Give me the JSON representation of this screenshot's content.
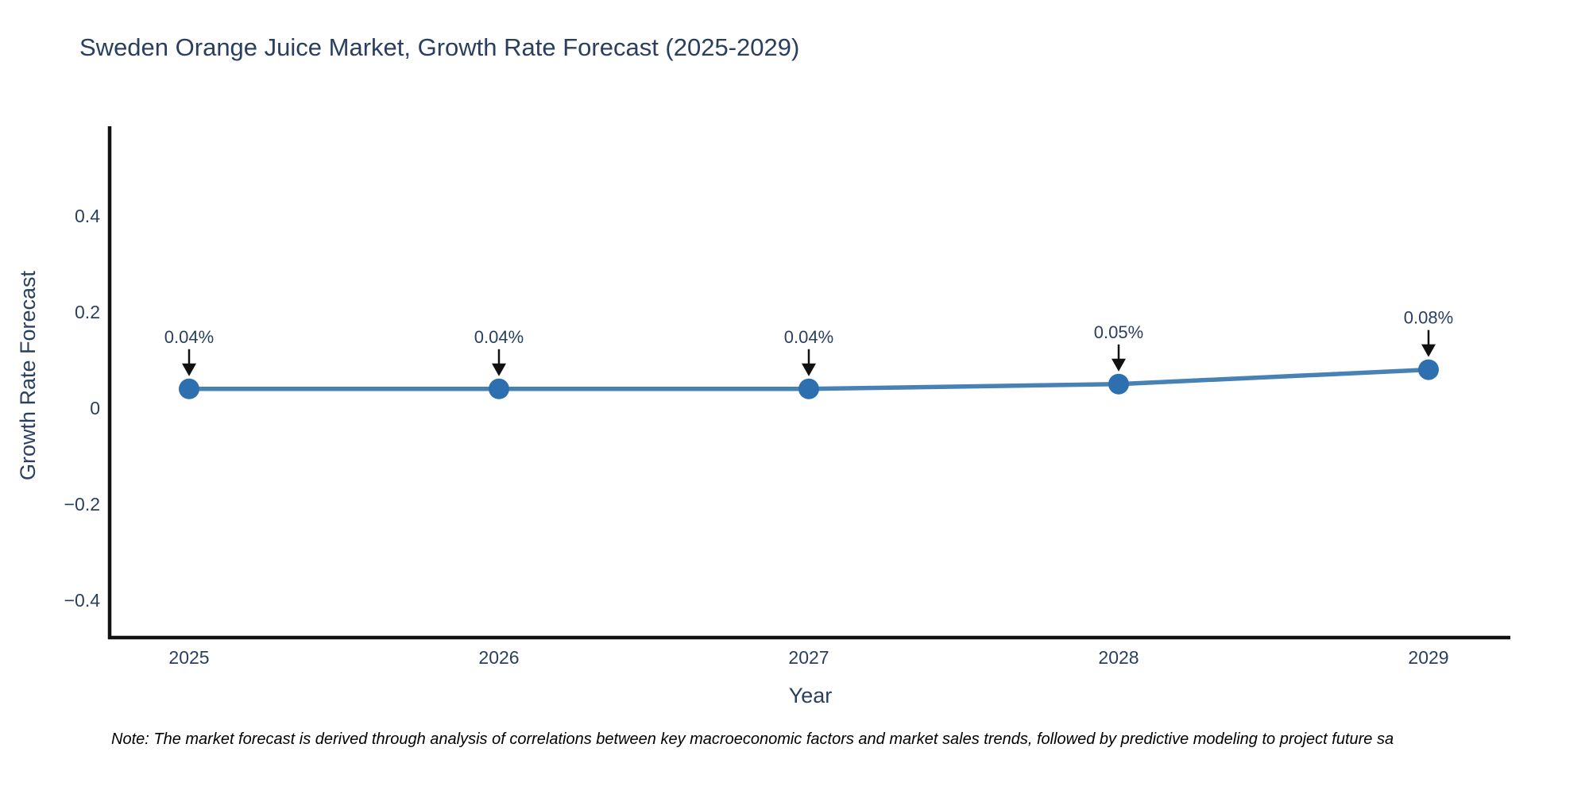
{
  "title": "Sweden Orange Juice Market, Growth Rate Forecast (2025-2029)",
  "note": "Note: The market forecast is derived through analysis of correlations between key macroeconomic factors and market sales trends, followed by predictive modeling to project future sa",
  "chart_data": {
    "type": "line",
    "title": "Sweden Orange Juice Market, Growth Rate Forecast (2025-2029)",
    "xlabel": "Year",
    "ylabel": "Growth Rate Forecast",
    "categories": [
      "2025",
      "2026",
      "2027",
      "2028",
      "2029"
    ],
    "series": [
      {
        "name": "Growth Rate Forecast",
        "values": [
          0.04,
          0.04,
          0.04,
          0.05,
          0.08
        ],
        "point_labels": [
          "0.04%",
          "0.04%",
          "0.04%",
          "0.05%",
          "0.08%"
        ]
      }
    ],
    "yticks": {
      "values": [
        0.4,
        0.2,
        0,
        -0.2,
        -0.4
      ],
      "labels": [
        "0.4",
        "0.2",
        "0",
        "−0.2",
        "−0.4"
      ]
    },
    "ylim": [
      -0.48,
      0.59
    ],
    "grid": false,
    "legend_position": "none",
    "annotations_style": "arrow-down-to-point",
    "colors": {
      "line": "#4682b4",
      "marker": "#2e6fb0",
      "axis_line": "#111111",
      "text": "#2a3f5f",
      "arrow": "#111111",
      "note_text": "#000000",
      "background": "#ffffff"
    }
  }
}
